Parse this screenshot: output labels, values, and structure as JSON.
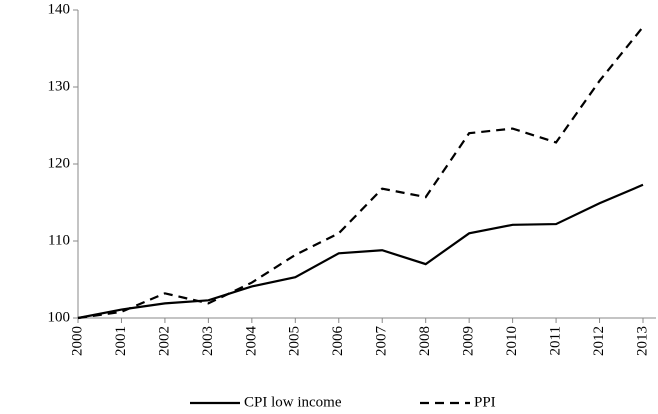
{
  "chart_data": {
    "type": "line",
    "categories": [
      "2000",
      "2001",
      "2002",
      "2003",
      "2004",
      "2005",
      "2006",
      "2007",
      "2008",
      "2009",
      "2010",
      "2011",
      "2012",
      "2013"
    ],
    "series": [
      {
        "name": "CPI low income",
        "color": "#000000",
        "dash": false,
        "values": [
          100,
          101.1,
          101.9,
          102.3,
          104.1,
          105.3,
          108.4,
          108.8,
          107.0,
          111.0,
          112.1,
          112.2,
          114.9,
          117.3
        ]
      },
      {
        "name": "PPI",
        "color": "#000000",
        "dash": true,
        "values": [
          100,
          100.8,
          103.2,
          101.9,
          104.6,
          108.2,
          111.0,
          116.8,
          115.7,
          124.0,
          124.6,
          122.8,
          130.8,
          137.8
        ]
      }
    ],
    "ylim": [
      100,
      140
    ],
    "yticks": [
      100,
      110,
      120,
      130,
      140
    ],
    "grid": false,
    "legend": "bottom"
  }
}
